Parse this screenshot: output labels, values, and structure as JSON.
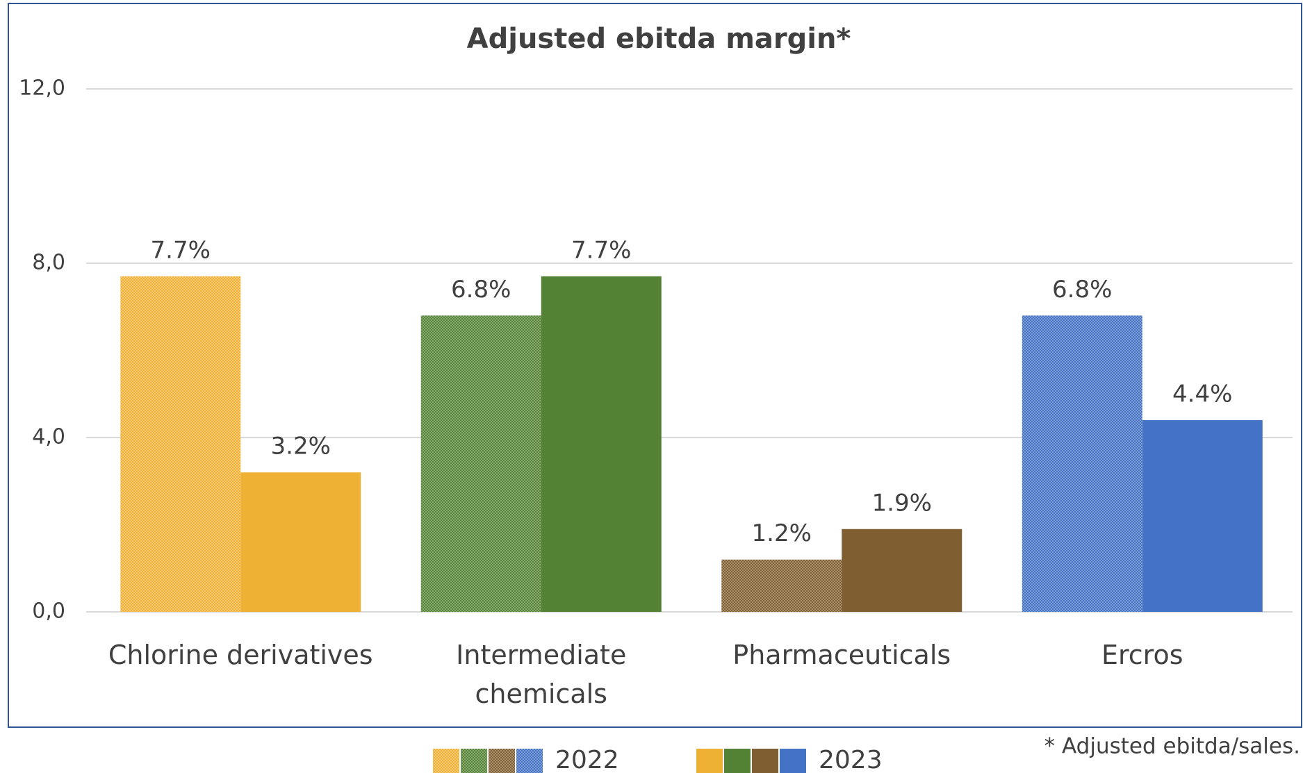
{
  "chart_data": {
    "type": "bar",
    "title": "Adjusted ebitda margin*",
    "categories": [
      "Chlorine derivatives",
      "Intermediate chemicals",
      "Pharmaceuticals",
      "Ercros"
    ],
    "series": [
      {
        "name": "2022",
        "pattern": "dotted",
        "colors": [
          "#efb133",
          "#548235",
          "#7f5f31",
          "#4472c4"
        ],
        "values": [
          7.7,
          6.8,
          1.2,
          6.8
        ],
        "value_labels": [
          "7.7%",
          "6.8%",
          "1.2%",
          "6.8%"
        ]
      },
      {
        "name": "2023",
        "pattern": "solid",
        "colors": [
          "#efb133",
          "#548235",
          "#7f5f31",
          "#4472c4"
        ],
        "values": [
          3.2,
          7.7,
          1.9,
          4.4
        ],
        "value_labels": [
          "3.2%",
          "7.7%",
          "1.9%",
          "4.4%"
        ]
      }
    ],
    "ylim": [
      0,
      12
    ],
    "yticks": [
      {
        "value": 0,
        "label": "0,0"
      },
      {
        "value": 4,
        "label": "4,0"
      },
      {
        "value": 8,
        "label": "8,0"
      },
      {
        "value": 12,
        "label": "12,0"
      }
    ],
    "grid": true,
    "footnote": "* Adjusted ebitda/sales."
  }
}
